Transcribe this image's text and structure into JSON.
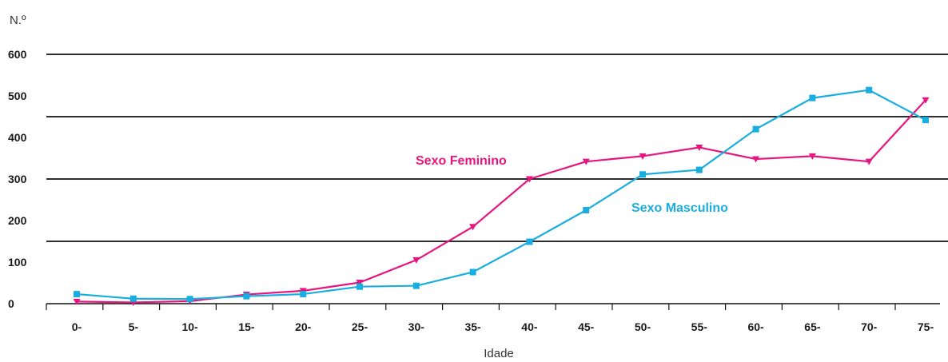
{
  "chart_data": {
    "type": "line",
    "ylabel": "N.º",
    "xlabel": "Idade",
    "ylim": [
      0,
      600
    ],
    "yticks": [
      "0",
      "100",
      "200",
      "300",
      "400",
      "500",
      "600"
    ],
    "categories": [
      "0-",
      "5-",
      "10-",
      "15-",
      "20-",
      "25-",
      "30-",
      "35-",
      "40-",
      "45-",
      "50-",
      "55-",
      "60-",
      "65-",
      "70-",
      "75-"
    ],
    "series": [
      {
        "name": "Sexo Feminino",
        "color": "#e6157f",
        "marker": "triangle-down",
        "values": [
          5,
          3,
          6,
          22,
          31,
          51,
          105,
          185,
          300,
          342,
          355,
          376,
          348,
          355,
          342,
          490
        ]
      },
      {
        "name": "Sexo Masculino",
        "color": "#1aaee0",
        "marker": "square",
        "values": [
          23,
          12,
          11,
          18,
          23,
          41,
          43,
          76,
          149,
          225,
          311,
          322,
          420,
          495,
          514,
          442
        ]
      }
    ],
    "legend": "inline labels"
  }
}
